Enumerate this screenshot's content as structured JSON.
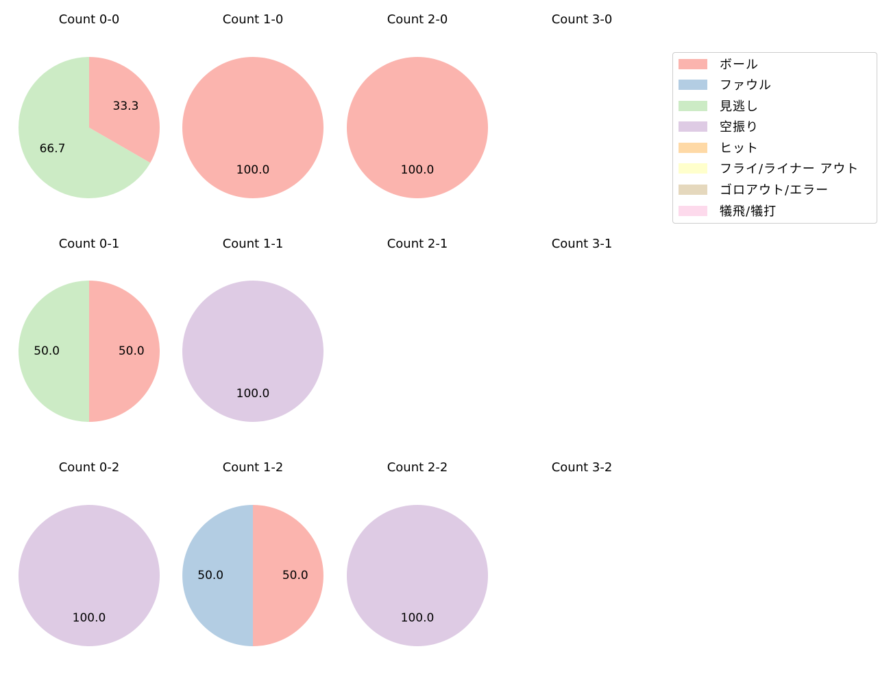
{
  "chart_data": {
    "type": "pie",
    "grid_layout": {
      "rows": 3,
      "cols": 4
    },
    "categories": [
      "ボール",
      "ファウル",
      "見逃し",
      "空振り",
      "ヒット",
      "フライ/ライナー アウト",
      "ゴロアウト/エラー",
      "犠飛/犠打"
    ],
    "colors": [
      "#fbb4ae",
      "#b3cde3",
      "#ccebc5",
      "#decbe4",
      "#fed9a6",
      "#ffffcc",
      "#e5d8bd",
      "#fddaec"
    ],
    "legend_position": "upper right",
    "charts": [
      {
        "title": "Count 0-0",
        "row": 0,
        "col": 0,
        "slices": [
          {
            "label": "ボール",
            "value": 33.3
          },
          {
            "label": "見逃し",
            "value": 66.7
          }
        ]
      },
      {
        "title": "Count 1-0",
        "row": 0,
        "col": 1,
        "slices": [
          {
            "label": "ボール",
            "value": 100.0
          }
        ]
      },
      {
        "title": "Count 2-0",
        "row": 0,
        "col": 2,
        "slices": [
          {
            "label": "ボール",
            "value": 100.0
          }
        ]
      },
      {
        "title": "Count 3-0",
        "row": 0,
        "col": 3,
        "slices": []
      },
      {
        "title": "Count 0-1",
        "row": 1,
        "col": 0,
        "slices": [
          {
            "label": "ボール",
            "value": 50.0
          },
          {
            "label": "見逃し",
            "value": 50.0
          }
        ]
      },
      {
        "title": "Count 1-1",
        "row": 1,
        "col": 1,
        "slices": [
          {
            "label": "空振り",
            "value": 100.0
          }
        ]
      },
      {
        "title": "Count 2-1",
        "row": 1,
        "col": 2,
        "slices": []
      },
      {
        "title": "Count 3-1",
        "row": 1,
        "col": 3,
        "slices": []
      },
      {
        "title": "Count 0-2",
        "row": 2,
        "col": 0,
        "slices": [
          {
            "label": "空振り",
            "value": 100.0
          }
        ]
      },
      {
        "title": "Count 1-2",
        "row": 2,
        "col": 1,
        "slices": [
          {
            "label": "ボール",
            "value": 50.0
          },
          {
            "label": "ファウル",
            "value": 50.0
          }
        ]
      },
      {
        "title": "Count 2-2",
        "row": 2,
        "col": 2,
        "slices": [
          {
            "label": "空振り",
            "value": 100.0
          }
        ]
      },
      {
        "title": "Count 3-2",
        "row": 2,
        "col": 3,
        "slices": []
      }
    ]
  },
  "legend": {
    "items": [
      {
        "label": "ボール",
        "color": "#fbb4ae"
      },
      {
        "label": "ファウル",
        "color": "#b3cde3"
      },
      {
        "label": "見逃し",
        "color": "#ccebc5"
      },
      {
        "label": "空振り",
        "color": "#decbe4"
      },
      {
        "label": "ヒット",
        "color": "#fed9a6"
      },
      {
        "label": "フライ/ライナー アウト",
        "color": "#ffffcc"
      },
      {
        "label": "ゴロアウト/エラー",
        "color": "#e5d8bd"
      },
      {
        "label": "犠飛/犠打",
        "color": "#fddaec"
      }
    ]
  }
}
